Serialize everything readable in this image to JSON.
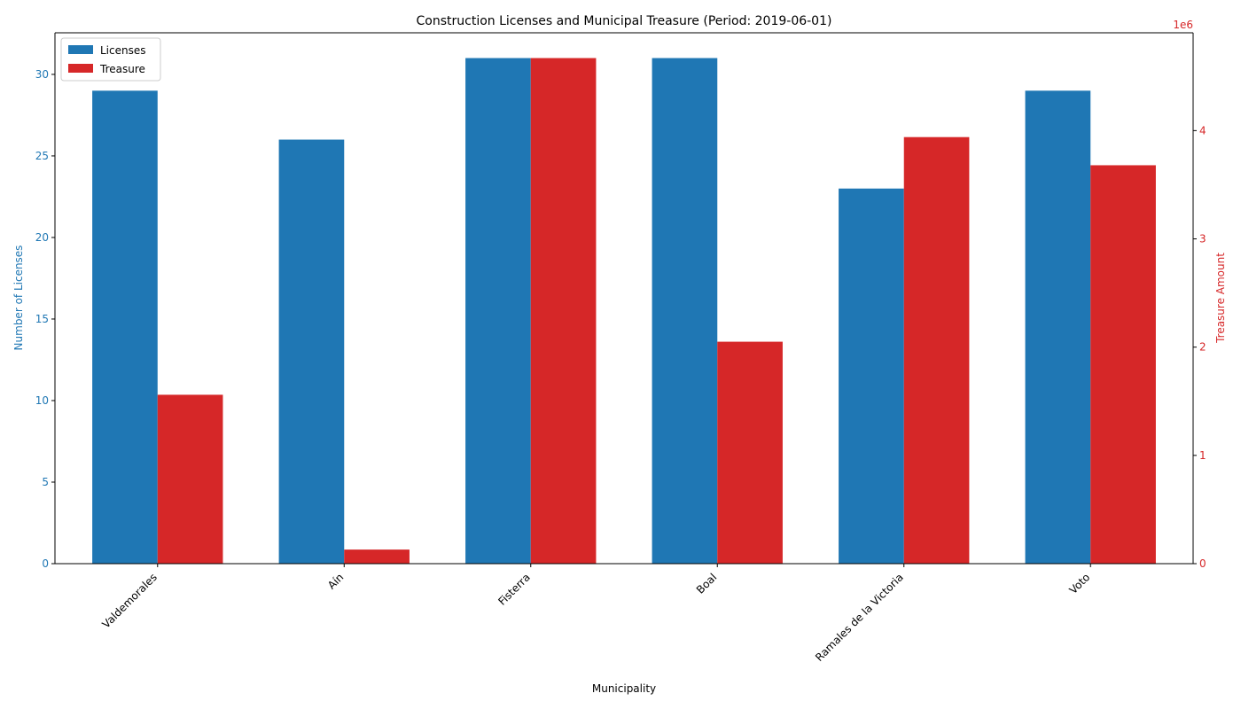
{
  "chart_data": {
    "type": "bar",
    "title": "Construction Licenses and Municipal Treasure (Period: 2019-06-01)",
    "xlabel": "Municipality",
    "ylabel_left": "Number of Licenses",
    "ylabel_right": "Treasure Amount",
    "right_axis_offset_label": "1e6",
    "categories": [
      "Valdemorales",
      "Aín",
      "Fisterra",
      "Boal",
      "Ramales de la Victoria",
      "Voto"
    ],
    "series": [
      {
        "name": "Licenses",
        "axis": "left",
        "color": "#1f77b4",
        "values": [
          29,
          26,
          31,
          31,
          23,
          29
        ]
      },
      {
        "name": "Treasure",
        "axis": "right",
        "color": "#d62728",
        "values": [
          1560000,
          130000,
          4670000,
          2050000,
          3940000,
          3680000
        ]
      }
    ],
    "ylim_left": [
      0,
      32.55
    ],
    "ylim_right": [
      0,
      4903500
    ],
    "yticks_left": [
      0,
      5,
      10,
      15,
      20,
      25,
      30
    ],
    "yticks_right": [
      0,
      1,
      2,
      3,
      4
    ],
    "right_tick_scale": 1000000,
    "left_axis_color": "#1f77b4",
    "right_axis_color": "#d62728",
    "legend": {
      "placement": "top-left",
      "labels": [
        "Licenses",
        "Treasure"
      ]
    },
    "grid": false
  }
}
